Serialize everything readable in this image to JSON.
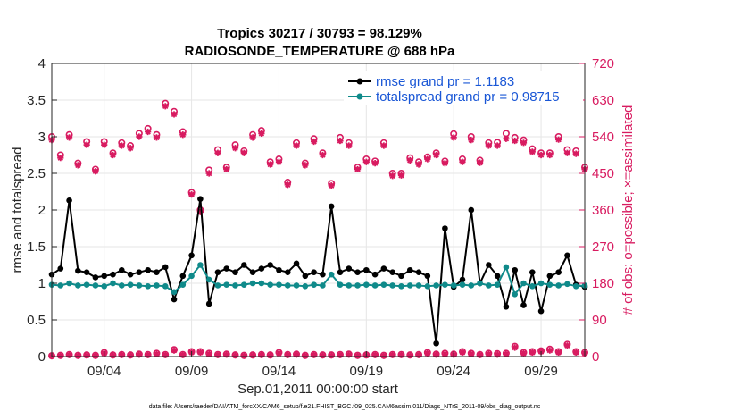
{
  "chart_data": {
    "type": "line",
    "title": [
      "Tropics 30217 / 30793 = 98.129%",
      "RADIOSONDE_TEMPERATURE @ 688 hPa"
    ],
    "xlabel": "Sep.01,2011 00:00:00 start",
    "ylabel": "rmse and totalspread",
    "y2label": "# of obs: o=possible; ×=assimilated",
    "footnote": "data file: /Users/raeder/DAI/ATM_forcXX/CAM6_setup/f.e21.FHIST_BGC.f09_025.CAM6assim.011/Diags_NTrS_2011-09/obs_diag_output.nc",
    "xlim": [
      1.0,
      31.5
    ],
    "ylim": [
      0,
      4
    ],
    "y2lim": [
      0,
      720
    ],
    "xticks": [
      4,
      9,
      14,
      19,
      24,
      29
    ],
    "xtick_labels": [
      "09/04",
      "09/09",
      "09/14",
      "09/19",
      "09/24",
      "09/29"
    ],
    "yticks": [
      0,
      0.5,
      1,
      1.5,
      2,
      2.5,
      3,
      3.5,
      4
    ],
    "ytick_labels": [
      "0",
      "0.5",
      "1",
      "1.5",
      "2",
      "2.5",
      "3",
      "3.5",
      "4"
    ],
    "y2ticks": [
      0,
      90,
      180,
      270,
      360,
      450,
      540,
      630,
      720
    ],
    "y2tick_labels": [
      "0",
      "90",
      "180",
      "270",
      "360",
      "450",
      "540",
      "630",
      "720"
    ],
    "legend_placement": "top-right",
    "colors": {
      "rmse": "#000000",
      "spread": "#0f8a8a",
      "obs": "#d81b60",
      "legend_text": "#1a57d6"
    },
    "x": [
      1.0,
      1.5,
      2.0,
      2.5,
      3.0,
      3.5,
      4.0,
      4.5,
      5.0,
      5.5,
      6.0,
      6.5,
      7.0,
      7.5,
      8.0,
      8.5,
      9.0,
      9.5,
      10.0,
      10.5,
      11.0,
      11.5,
      12.0,
      12.5,
      13.0,
      13.5,
      14.0,
      14.5,
      15.0,
      15.5,
      16.0,
      16.5,
      17.0,
      17.5,
      18.0,
      18.5,
      19.0,
      19.5,
      20.0,
      20.5,
      21.0,
      21.5,
      22.0,
      22.5,
      23.0,
      23.5,
      24.0,
      24.5,
      25.0,
      25.5,
      26.0,
      26.5,
      27.0,
      27.5,
      28.0,
      28.5,
      29.0,
      29.5,
      30.0,
      30.5,
      31.0,
      31.5
    ],
    "series": [
      {
        "name": "rmse grand pr = 1.1183",
        "values": [
          1.12,
          1.2,
          2.13,
          1.17,
          1.15,
          1.08,
          1.1,
          1.12,
          1.18,
          1.12,
          1.15,
          1.18,
          1.15,
          1.22,
          0.78,
          1.1,
          1.38,
          2.15,
          0.72,
          1.15,
          1.2,
          1.15,
          1.25,
          1.15,
          1.2,
          1.25,
          1.18,
          1.15,
          1.27,
          1.1,
          1.15,
          1.12,
          2.05,
          1.15,
          1.2,
          1.15,
          1.18,
          1.12,
          1.2,
          1.15,
          1.1,
          1.18,
          1.15,
          1.1,
          0.18,
          1.75,
          0.95,
          1.05,
          2.0,
          1.0,
          1.25,
          1.1,
          0.68,
          1.18,
          0.7,
          1.15,
          0.62,
          1.1,
          1.15,
          1.38,
          0.98,
          0.95
        ]
      },
      {
        "name": "totalspread grand pr = 0.98715",
        "values": [
          0.98,
          0.97,
          1.0,
          0.97,
          0.98,
          0.97,
          0.96,
          1.0,
          0.97,
          0.98,
          0.97,
          0.96,
          0.97,
          0.96,
          0.88,
          0.98,
          1.1,
          1.25,
          1.05,
          0.97,
          0.98,
          0.97,
          0.98,
          1.0,
          1.0,
          0.98,
          0.98,
          0.97,
          0.97,
          0.96,
          0.98,
          0.97,
          1.12,
          0.98,
          0.97,
          0.97,
          0.98,
          0.97,
          0.98,
          0.97,
          0.96,
          0.97,
          0.97,
          0.96,
          0.97,
          0.98,
          0.97,
          0.98,
          0.97,
          1.0,
          0.97,
          0.98,
          1.22,
          0.85,
          1.0,
          0.96,
          1.0,
          0.98,
          0.97,
          0.99,
          0.96,
          0.97
        ]
      },
      {
        "name": "possible",
        "values": [
          540,
          495,
          545,
          475,
          528,
          460,
          528,
          500,
          525,
          518,
          548,
          560,
          545,
          622,
          602,
          552,
          403,
          360,
          458,
          508,
          465,
          520,
          505,
          545,
          555,
          478,
          485,
          428,
          525,
          475,
          535,
          500,
          425,
          538,
          525,
          465,
          485,
          480,
          525,
          450,
          450,
          488,
          478,
          490,
          500,
          480,
          547,
          485,
          540,
          482,
          525,
          526,
          548,
          538,
          532,
          510,
          500,
          500,
          540,
          508,
          505,
          465
        ]
      },
      {
        "name": "assimilated",
        "values": [
          532,
          488,
          538,
          470,
          520,
          455,
          520,
          495,
          518,
          512,
          540,
          552,
          538,
          615,
          595,
          545,
          398,
          355,
          450,
          500,
          460,
          512,
          500,
          538,
          548,
          472,
          478,
          422,
          518,
          470,
          528,
          495,
          420,
          530,
          518,
          460,
          478,
          475,
          518,
          444,
          445,
          482,
          472,
          485,
          495,
          475,
          538,
          478,
          532,
          476,
          518,
          518,
          535,
          530,
          525,
          503,
          495,
          495,
          533,
          500,
          498,
          460
        ]
      },
      {
        "name": "possible_low",
        "values": [
          2,
          3,
          5,
          3,
          4,
          3,
          10,
          4,
          5,
          4,
          6,
          5,
          8,
          5,
          17,
          5,
          12,
          12,
          8,
          5,
          6,
          4,
          3,
          4,
          5,
          4,
          10,
          5,
          6,
          3,
          5,
          4,
          4,
          5,
          6,
          3,
          4,
          5,
          3,
          5,
          5,
          4,
          5,
          10,
          6,
          8,
          6,
          12,
          8,
          5,
          8,
          7,
          8,
          25,
          10,
          12,
          14,
          18,
          12,
          30,
          12,
          10
        ]
      },
      {
        "name": "assimilated_low",
        "values": [
          1,
          2,
          4,
          2,
          3,
          2,
          8,
          3,
          4,
          3,
          5,
          4,
          6,
          4,
          15,
          4,
          10,
          10,
          6,
          4,
          5,
          3,
          2,
          3,
          4,
          3,
          8,
          4,
          5,
          2,
          4,
          3,
          3,
          4,
          5,
          2,
          3,
          4,
          2,
          4,
          4,
          3,
          4,
          8,
          5,
          6,
          5,
          10,
          6,
          4,
          6,
          5,
          6,
          22,
          8,
          10,
          12,
          15,
          10,
          27,
          10,
          8
        ]
      }
    ]
  }
}
